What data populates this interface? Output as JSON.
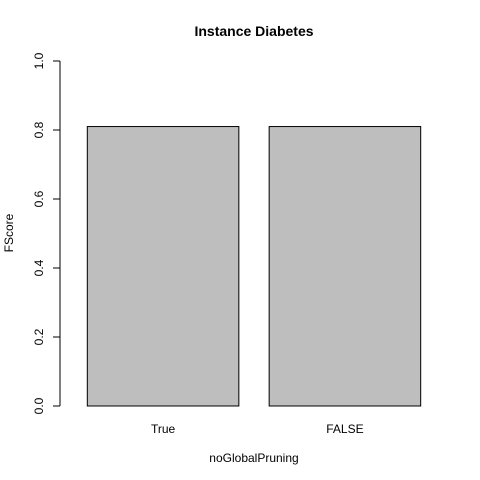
{
  "chart_data": {
    "type": "bar",
    "title": "Instance Diabetes",
    "xlabel": "noGlobalPruning",
    "ylabel": "FScore",
    "categories": [
      "True",
      "FALSE"
    ],
    "values": [
      0.81,
      0.81
    ],
    "ylim": [
      0,
      1
    ],
    "yticks": [
      "0.0",
      "0.2",
      "0.4",
      "0.6",
      "0.8",
      "1.0"
    ],
    "grid": false,
    "legend": "none",
    "bar_color": "#bebebe",
    "edge_color": "#000000"
  }
}
